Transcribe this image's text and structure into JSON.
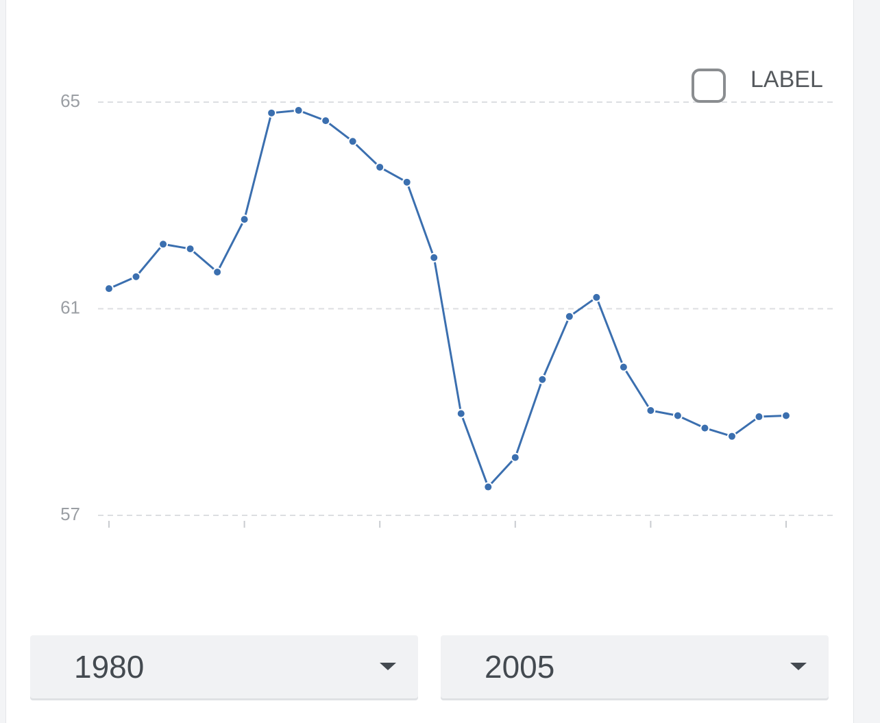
{
  "chart_data": {
    "type": "line",
    "x": [
      1980,
      1981,
      1982,
      1983,
      1984,
      1985,
      1986,
      1987,
      1988,
      1989,
      1990,
      1991,
      1992,
      1993,
      1994,
      1995,
      1996,
      1997,
      1998,
      1999,
      2000,
      2001,
      2002,
      2003,
      2004,
      2005
    ],
    "series": [
      {
        "name": "LABEL",
        "color": "#3b6faf",
        "values": [
          61.39,
          61.62,
          62.25,
          62.16,
          61.71,
          62.73,
          64.79,
          64.84,
          64.64,
          64.24,
          63.74,
          63.45,
          61.99,
          58.97,
          57.55,
          58.12,
          59.63,
          60.85,
          61.22,
          59.87,
          59.03,
          58.93,
          58.69,
          58.53,
          58.91,
          58.93
        ]
      }
    ],
    "xlim": [
      1980,
      2005
    ],
    "xticks": [
      1980,
      1985,
      1990,
      1995,
      2000,
      2005
    ],
    "ylim": [
      57,
      65
    ],
    "yticks": [
      57,
      61,
      65
    ],
    "grid": true,
    "legend": "top-right"
  },
  "controls": {
    "start": "1980",
    "end": "2005"
  }
}
